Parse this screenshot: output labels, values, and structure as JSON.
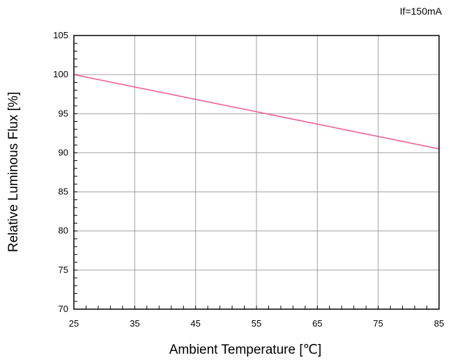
{
  "chart_data": {
    "type": "line",
    "annotation": "If=150mA",
    "xlabel": "Ambient Temperature [℃]",
    "ylabel": "Relative Luminous Flux [%]",
    "xlim": [
      25,
      85
    ],
    "ylim": [
      70,
      105
    ],
    "xticks": [
      25,
      35,
      45,
      55,
      65,
      75,
      85
    ],
    "yticks": [
      70,
      75,
      80,
      85,
      90,
      95,
      100,
      105
    ],
    "grid": true,
    "legend": "none",
    "series": [
      {
        "color": "#f0609a",
        "x": [
          25,
          85
        ],
        "y": [
          100,
          90.5
        ]
      }
    ]
  }
}
